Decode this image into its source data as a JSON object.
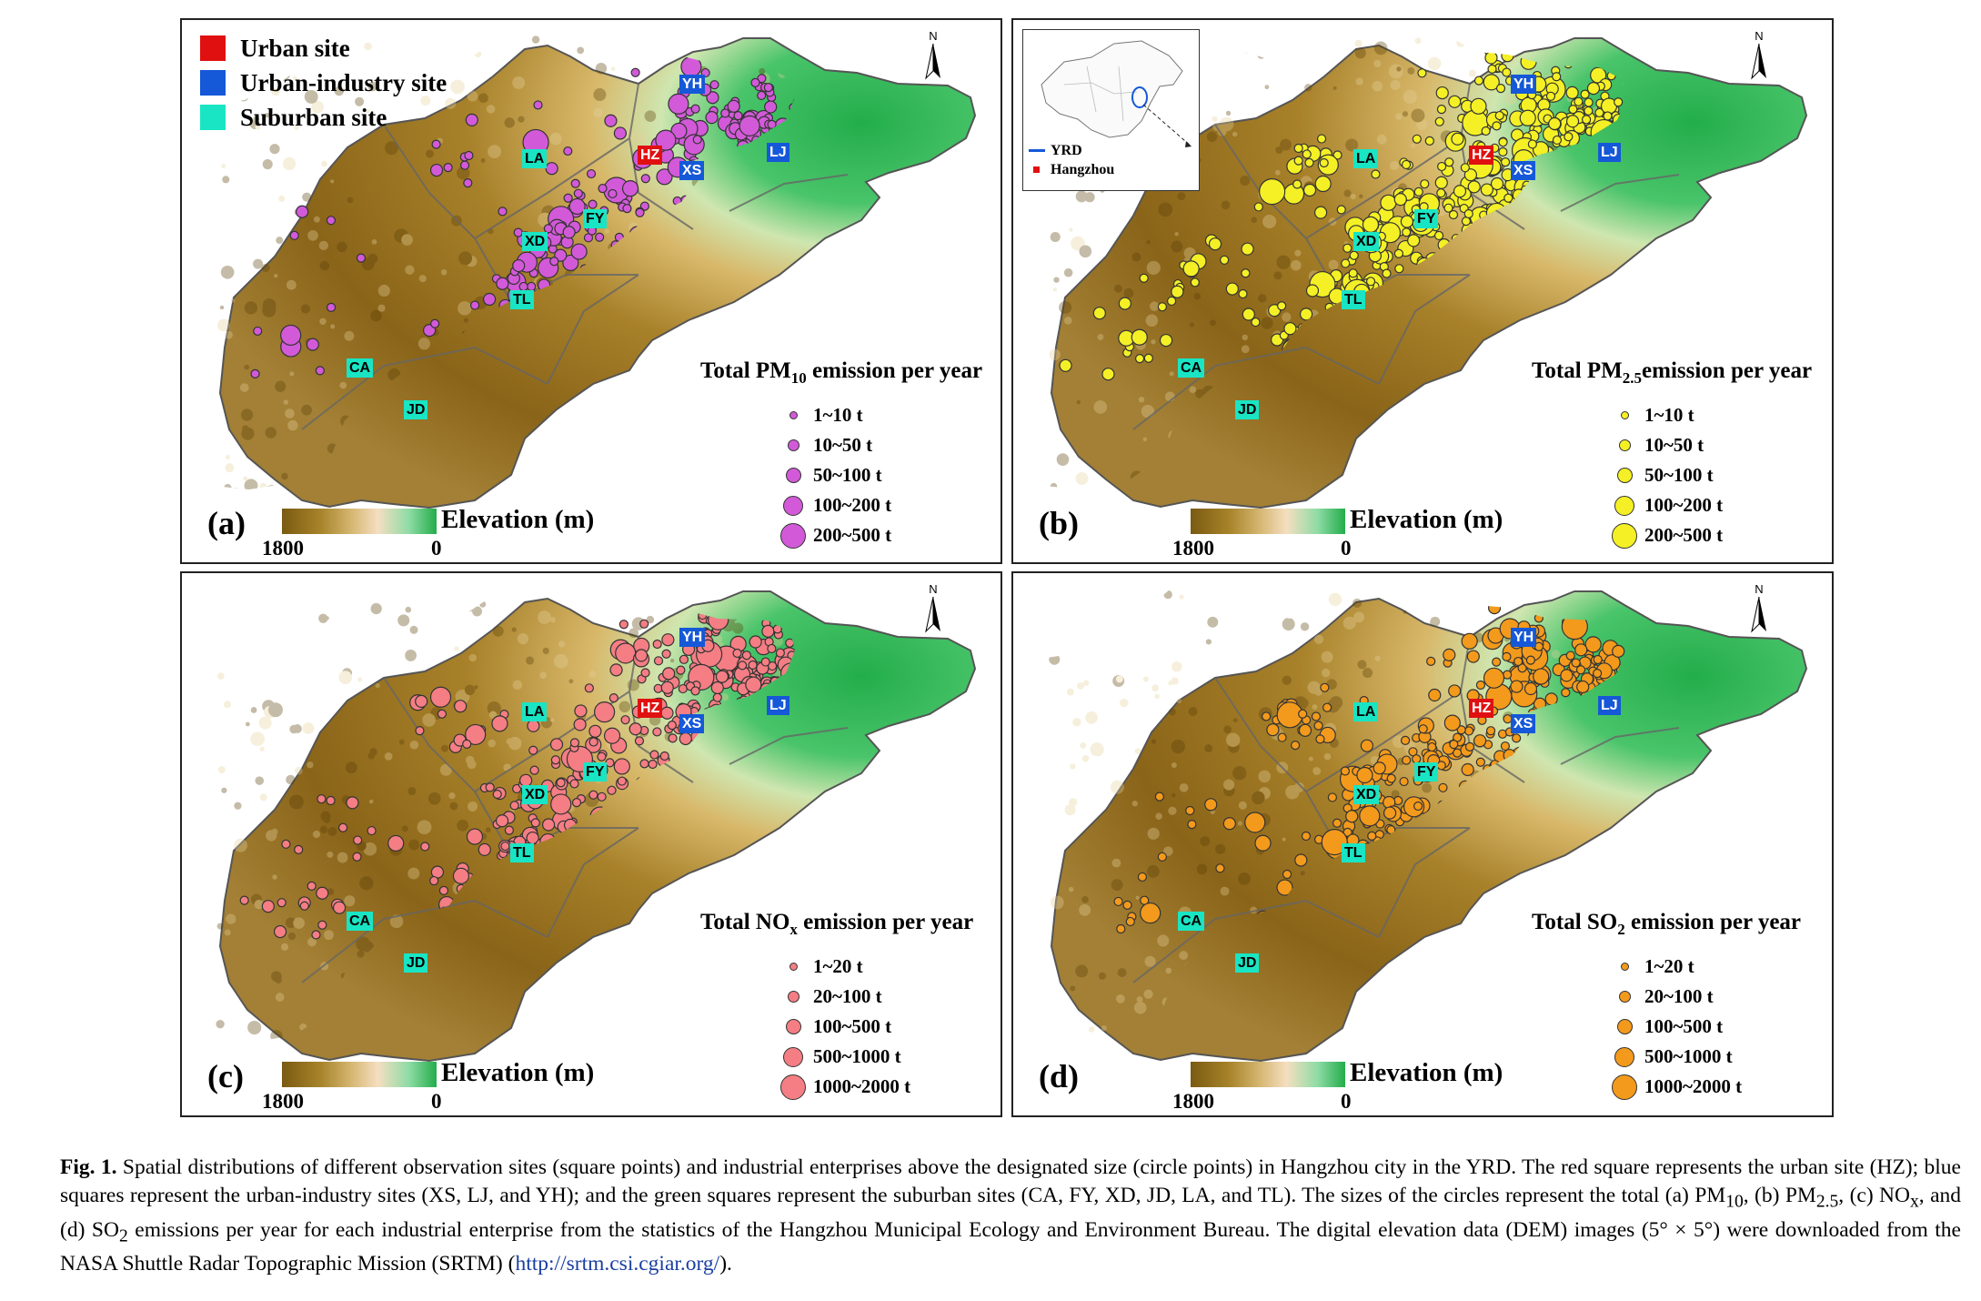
{
  "sites": {
    "urban": {
      "label": "Urban site",
      "color": "#e01010"
    },
    "urban_industry": {
      "label": "Urban-industry site",
      "color": "#1558d8"
    },
    "suburban": {
      "label": "Suburban site",
      "color": "#19e5c4"
    },
    "codes": {
      "HZ": "HZ",
      "XS": "XS",
      "LJ": "LJ",
      "YH": "YH",
      "LA": "LA",
      "FY": "FY",
      "XD": "XD",
      "TL": "TL",
      "CA": "CA",
      "JD": "JD"
    }
  },
  "north_label": "N",
  "inset": {
    "yrd_label": "YRD",
    "hangzhou_label": "Hangzhou"
  },
  "panels": [
    {
      "label": "(a)",
      "title_pre": "Total PM",
      "title_sub": "10",
      "title_post": " emission per year",
      "dot_color": "#d25ad8",
      "legend": [
        "1~10 t",
        "10~50 t",
        "50~100 t",
        "100~200 t",
        "200~500 t"
      ],
      "elevation_title": "Elevation (m)",
      "elevation_max": "1800",
      "elevation_min": "0"
    },
    {
      "label": "(b)",
      "title_pre": "Total PM",
      "title_sub": "2.5",
      "title_post": "emission per year",
      "dot_color": "#f4f025",
      "legend": [
        "1~10 t",
        "10~50 t",
        "50~100 t",
        "100~200 t",
        "200~500 t"
      ],
      "elevation_title": "Elevation (m)",
      "elevation_max": "1800",
      "elevation_min": "0"
    },
    {
      "label": "(c)",
      "title_pre": "Total NO",
      "title_sub": "x",
      "title_post": " emission per year",
      "dot_color": "#f47e84",
      "legend": [
        "1~20 t",
        "20~100 t",
        "100~500 t",
        "500~1000 t",
        "1000~2000 t"
      ],
      "elevation_title": "Elevation (m)",
      "elevation_max": "1800",
      "elevation_min": "0"
    },
    {
      "label": "(d)",
      "title_pre": "Total SO",
      "title_sub": "2",
      "title_post": "  emission per year",
      "dot_color": "#f39a1c",
      "legend": [
        "1~20 t",
        "20~100 t",
        "100~500 t",
        "500~1000 t",
        "1000~2000 t"
      ],
      "elevation_title": "Elevation (m)",
      "elevation_max": "1800",
      "elevation_min": "0"
    }
  ],
  "caption": {
    "fig": "Fig. 1.",
    "t1": " Spatial distributions of different observation sites (square points) and industrial enterprises above the designated size (circle points) in Hangzhou city in the YRD. The red square represents the urban site (HZ); blue squares represent the urban-industry sites (XS, LJ, and YH); and the green squares represent the suburban sites (CA, FY, XD, JD, LA, and TL). The sizes of the circles represent the total (a) PM",
    "s1": "10",
    "t2": ", (b) PM",
    "s2": "2.5",
    "t3": ", (c) NO",
    "s3": "x",
    "t4": ", and (d) SO",
    "s4": "2",
    "t5": " emissions per year for each industrial enterprise from the statistics of the Hangzhou Municipal Ecology and Environment Bureau. The digital elevation data (DEM) images (5° × 5°) were downloaded from the NASA Shuttle Radar Topographic Mission (SRTM) (",
    "link": "http://srtm.csi.cgiar.org/",
    "t6": ")."
  }
}
